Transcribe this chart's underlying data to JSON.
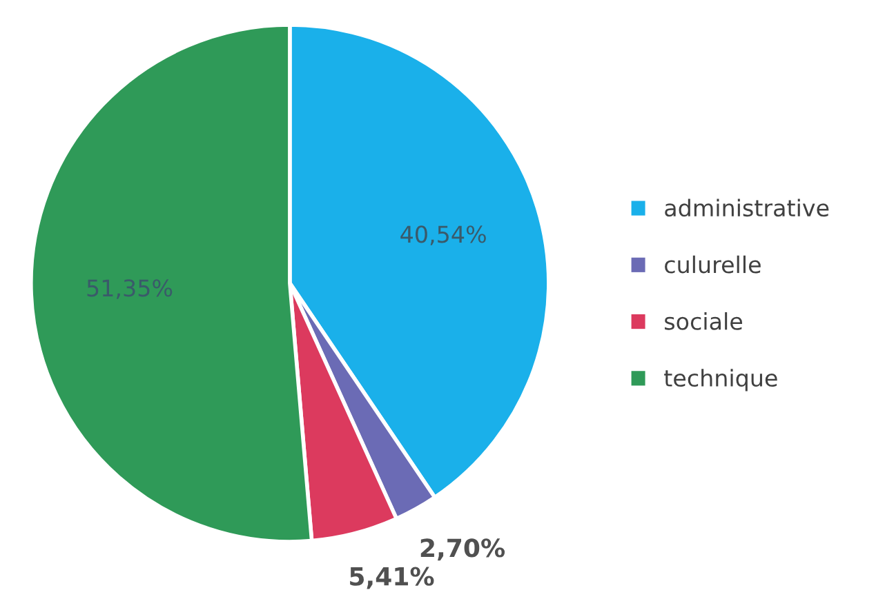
{
  "chart_data": {
    "type": "pie",
    "categories": [
      "administrative",
      "culurelle",
      "sociale",
      "technique"
    ],
    "values": [
      40.54,
      2.7,
      5.41,
      51.35
    ],
    "colors": [
      "#1ab0ea",
      "#6b6bb5",
      "#dc3a5e",
      "#2f9a58"
    ],
    "value_labels": [
      "40,54%",
      "2,70%",
      "5,41%",
      "51,35%"
    ],
    "legend": "right"
  }
}
